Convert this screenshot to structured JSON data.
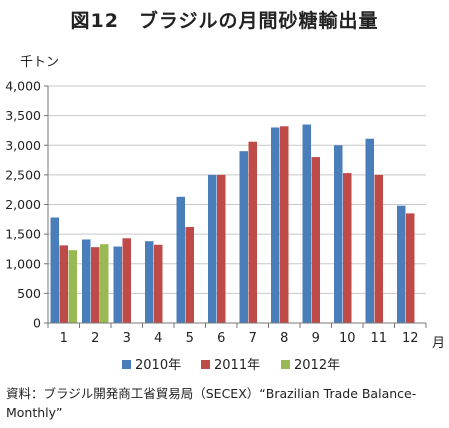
{
  "title": "図12　ブラジルの月間砂糖輸出量",
  "source": "資料：ブラジル開発商工省貿易局（SECEX）“Brazilian Trade Balance-Monthly”",
  "chart_data": {
    "type": "bar",
    "title": "図12　ブラジルの月間砂糖輸出量",
    "ylabel": "千トン",
    "xlabel": "月",
    "categories": [
      "1",
      "2",
      "3",
      "4",
      "5",
      "6",
      "7",
      "8",
      "9",
      "10",
      "11",
      "12"
    ],
    "ylim": [
      0,
      4000
    ],
    "yticks": [
      0,
      500,
      1000,
      1500,
      2000,
      2500,
      3000,
      3500,
      4000
    ],
    "ytick_labels": [
      "0",
      "500",
      "1,000",
      "1,500",
      "2,000",
      "2,500",
      "3,000",
      "3,500",
      "4,000"
    ],
    "grid": true,
    "legend": "bottom",
    "series": [
      {
        "name": "2010年",
        "color": "#4a7ebb",
        "values": [
          1780,
          1410,
          1290,
          1380,
          2130,
          2500,
          2900,
          3300,
          3350,
          3000,
          3110,
          1980
        ]
      },
      {
        "name": "2011年",
        "color": "#be4b48",
        "values": [
          1310,
          1280,
          1430,
          1320,
          1620,
          2500,
          3060,
          3320,
          2800,
          2530,
          2500,
          1850
        ]
      },
      {
        "name": "2012年",
        "color": "#98b954",
        "values": [
          1230,
          1330,
          null,
          null,
          null,
          null,
          null,
          null,
          null,
          null,
          null,
          null
        ]
      }
    ]
  }
}
